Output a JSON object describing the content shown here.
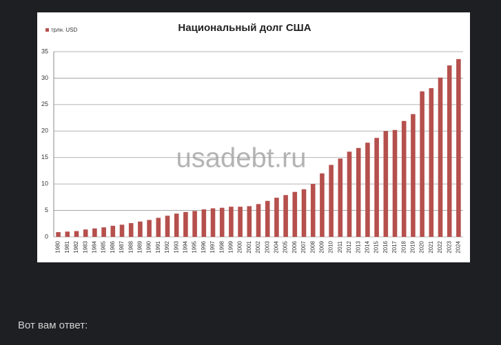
{
  "chart_data": {
    "type": "bar",
    "title": "Национальный долг США",
    "watermark": "usadebt.ru",
    "categories": [
      "1980",
      "1981",
      "1982",
      "1983",
      "1984",
      "1985",
      "1986",
      "1987",
      "1988",
      "1989",
      "1990",
      "1991",
      "1992",
      "1993",
      "1994",
      "1995",
      "1996",
      "1997",
      "1998",
      "1999",
      "2000",
      "2001",
      "2002",
      "2003",
      "2004",
      "2005",
      "2006",
      "2007",
      "2008",
      "2009",
      "2010",
      "2011",
      "2012",
      "2013",
      "2014",
      "2015",
      "2016",
      "2017",
      "2018",
      "2019",
      "2020",
      "2021",
      "2022",
      "2023",
      "2024"
    ],
    "series": [
      {
        "name": "трлн. USD",
        "color": "#b5504d",
        "values": [
          0.9,
          1.0,
          1.1,
          1.4,
          1.6,
          1.8,
          2.1,
          2.3,
          2.6,
          2.9,
          3.2,
          3.6,
          4.0,
          4.4,
          4.7,
          4.9,
          5.2,
          5.4,
          5.5,
          5.7,
          5.7,
          5.8,
          6.2,
          6.8,
          7.4,
          7.9,
          8.5,
          9.0,
          10.0,
          12.0,
          13.6,
          14.8,
          16.1,
          16.8,
          17.8,
          18.7,
          20.0,
          20.2,
          21.9,
          23.2,
          27.5,
          28.1,
          30.1,
          32.4,
          33.6
        ]
      }
    ],
    "ylim": [
      0,
      35
    ],
    "yticks": [
      0,
      5,
      10,
      15,
      20,
      25,
      30,
      35
    ],
    "grid": true,
    "legend": "top-left"
  },
  "message": {
    "text": "Вот вам ответ:"
  }
}
